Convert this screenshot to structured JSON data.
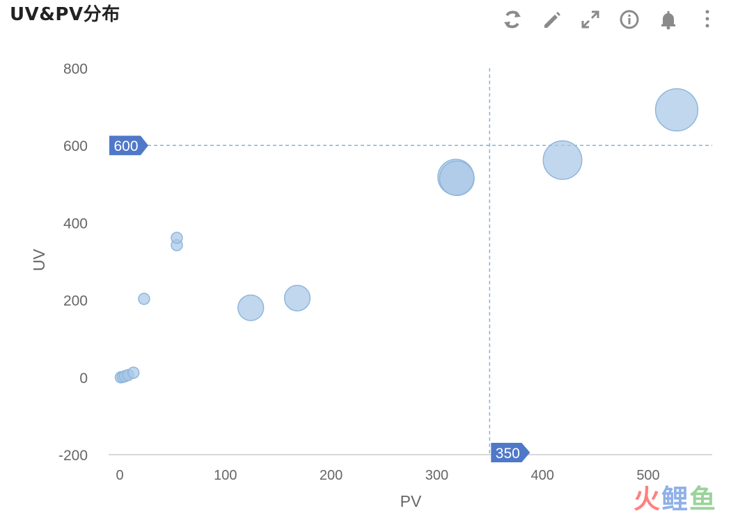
{
  "header": {
    "title": "UV&PV分布",
    "tools": [
      {
        "name": "refresh-icon"
      },
      {
        "name": "edit-icon"
      },
      {
        "name": "fullscreen-icon"
      },
      {
        "name": "info-icon"
      },
      {
        "name": "bell-icon"
      },
      {
        "name": "more-icon"
      }
    ]
  },
  "colors": {
    "bubble_fill": "#a9c8e6",
    "bubble_stroke": "#8fb6dc",
    "marker": "#4f78c9",
    "guide_line": "#8fb6dc",
    "axis_text": "#666666"
  },
  "chart_data": {
    "type": "scatter",
    "xlabel": "PV",
    "ylabel": "UV",
    "xlim": [
      -10,
      560
    ],
    "ylim": [
      -200,
      800
    ],
    "x_ticks": [
      0,
      100,
      200,
      300,
      400,
      500
    ],
    "y_ticks": [
      -200,
      0,
      200,
      400,
      600,
      800
    ],
    "points": [
      {
        "x": 1,
        "y": 0,
        "size": 1
      },
      {
        "x": 3,
        "y": 1,
        "size": 1
      },
      {
        "x": 5,
        "y": 3,
        "size": 1
      },
      {
        "x": 8,
        "y": 6,
        "size": 1
      },
      {
        "x": 13,
        "y": 12,
        "size": 1
      },
      {
        "x": 23,
        "y": 203,
        "size": 1
      },
      {
        "x": 54,
        "y": 342,
        "size": 1
      },
      {
        "x": 54,
        "y": 361,
        "size": 1
      },
      {
        "x": 124,
        "y": 180,
        "size": 2.2
      },
      {
        "x": 168,
        "y": 205,
        "size": 2.2
      },
      {
        "x": 318,
        "y": 518,
        "size": 4.3
      },
      {
        "x": 319,
        "y": 515,
        "size": 4
      },
      {
        "x": 419,
        "y": 562,
        "size": 5
      },
      {
        "x": 527,
        "y": 692,
        "size": 6
      }
    ],
    "mark_lines": {
      "x": {
        "value": 350,
        "label": "350"
      },
      "y": {
        "value": 600,
        "label": "600"
      }
    },
    "grid": false
  },
  "watermark": {
    "part1": "火",
    "part2": "鲤",
    "part3": "鱼"
  }
}
